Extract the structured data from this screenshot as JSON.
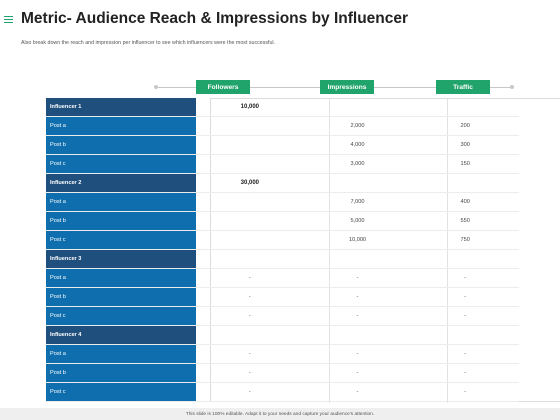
{
  "title": "Metric- Audience Reach & Impressions by Influencer",
  "subtitle": "Also break down the reach and impression per influencer to see which influencers were the most successful.",
  "columns": [
    "Followers",
    "Impressions",
    "Traffic"
  ],
  "rows": [
    {
      "kind": "group",
      "label": "Influencer 1",
      "followers": "10,000",
      "impressions": "",
      "traffic": ""
    },
    {
      "kind": "item",
      "label": "Post a",
      "followers": "",
      "impressions": "2,000",
      "traffic": "200"
    },
    {
      "kind": "item",
      "label": "Post b",
      "followers": "",
      "impressions": "4,000",
      "traffic": "300"
    },
    {
      "kind": "item",
      "label": "Post c",
      "followers": "",
      "impressions": "3,000",
      "traffic": "150"
    },
    {
      "kind": "group",
      "label": "Influencer 2",
      "followers": "30,000",
      "impressions": "",
      "traffic": ""
    },
    {
      "kind": "item",
      "label": "Post a",
      "followers": "",
      "impressions": "7,000",
      "traffic": "400"
    },
    {
      "kind": "item",
      "label": "Post b",
      "followers": "",
      "impressions": "5,000",
      "traffic": "550"
    },
    {
      "kind": "item",
      "label": "Post c",
      "followers": "",
      "impressions": "10,000",
      "traffic": "750"
    },
    {
      "kind": "group",
      "label": "Influencer 3",
      "followers": "",
      "impressions": "",
      "traffic": ""
    },
    {
      "kind": "item",
      "label": "Post a",
      "followers": "-",
      "impressions": "-",
      "traffic": "-"
    },
    {
      "kind": "item",
      "label": "Post b",
      "followers": "-",
      "impressions": "-",
      "traffic": "-"
    },
    {
      "kind": "item",
      "label": "Post c",
      "followers": "-",
      "impressions": "-",
      "traffic": "-"
    },
    {
      "kind": "group",
      "label": "Influencer 4",
      "followers": "",
      "impressions": "",
      "traffic": ""
    },
    {
      "kind": "item",
      "label": "Post a",
      "followers": "-",
      "impressions": "-",
      "traffic": "-"
    },
    {
      "kind": "item",
      "label": "Post b",
      "followers": "-",
      "impressions": "-",
      "traffic": "-"
    },
    {
      "kind": "item",
      "label": "Post c",
      "followers": "-",
      "impressions": "-",
      "traffic": "-"
    }
  ],
  "footer": "This slide is 100% editable. Adapt it to your needs and capture your audience's attention.",
  "colors": {
    "accent": "#21a36c",
    "group_blue": "#1f4f7d",
    "item_blue": "#0f6fae"
  },
  "icons": {
    "menu": "hamburger-icon"
  }
}
